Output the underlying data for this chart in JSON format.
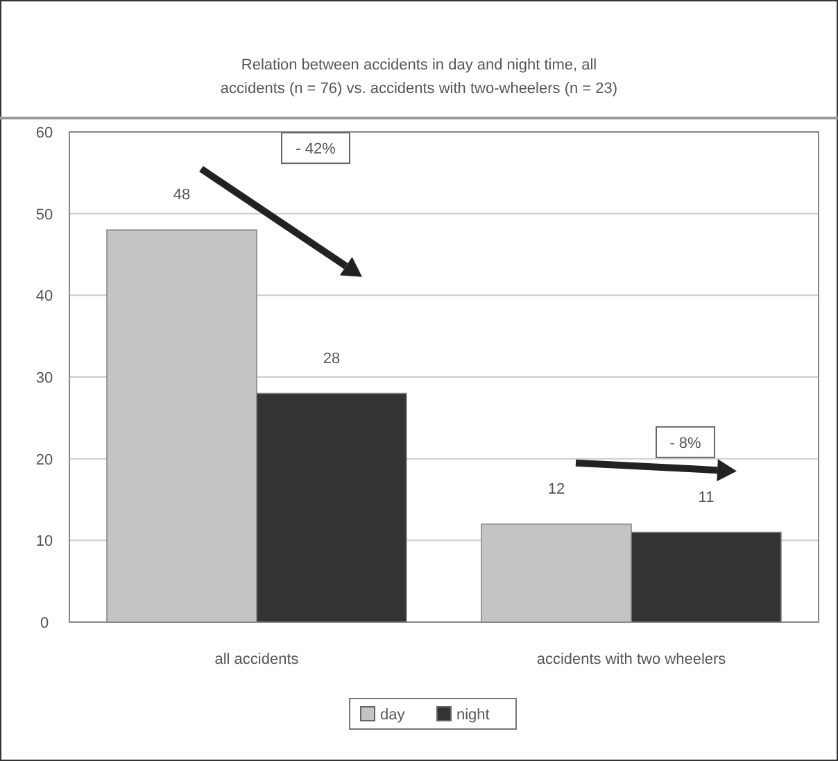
{
  "chart_data": {
    "type": "bar",
    "title": "Relation between accidents in day and night time, all accidents (n = 76) vs. accidents with two-wheelers (n = 23)",
    "categories": [
      "all accidents",
      "accidents with two wheelers"
    ],
    "series": [
      {
        "name": "day",
        "color": "#c4c4c4",
        "values": [
          48,
          12
        ]
      },
      {
        "name": "night",
        "color": "#333333",
        "values": [
          28,
          11
        ]
      }
    ],
    "ylim": [
      0,
      60
    ],
    "yticks": [
      0,
      10,
      20,
      30,
      40,
      50,
      60
    ],
    "grid": "y",
    "legend": "bottom",
    "data_labels": true,
    "annotations": [
      "- 42%",
      "- 8%"
    ]
  }
}
